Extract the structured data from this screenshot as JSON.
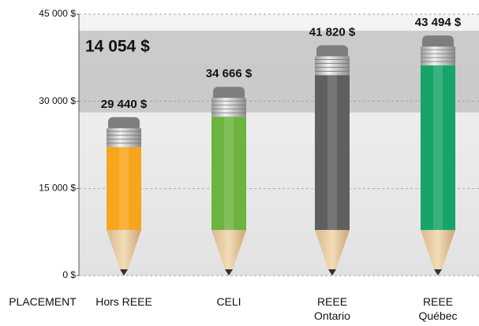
{
  "chart_data": {
    "type": "bar",
    "x_label": "PLACEMENT",
    "annotation": "14 054 $",
    "categories": [
      "Hors REEE",
      "CELI",
      "REEE\nOntario",
      "REEE\nQuébec"
    ],
    "values": [
      29440,
      34666,
      41820,
      43494
    ],
    "value_labels": [
      "29 440 $",
      "34 666 $",
      "41 820 $",
      "43 494 $"
    ],
    "colors": [
      "#f7a51c",
      "#6db33f",
      "#5e5f61",
      "#16a468"
    ],
    "ylim": [
      0,
      45000
    ],
    "yticks": [
      {
        "value": 0,
        "label": "0 $"
      },
      {
        "value": 15000,
        "label": "15 000 $"
      },
      {
        "value": 30000,
        "label": "30 000 $"
      },
      {
        "value": 45000,
        "label": "45 000 $"
      }
    ],
    "grid": true
  }
}
